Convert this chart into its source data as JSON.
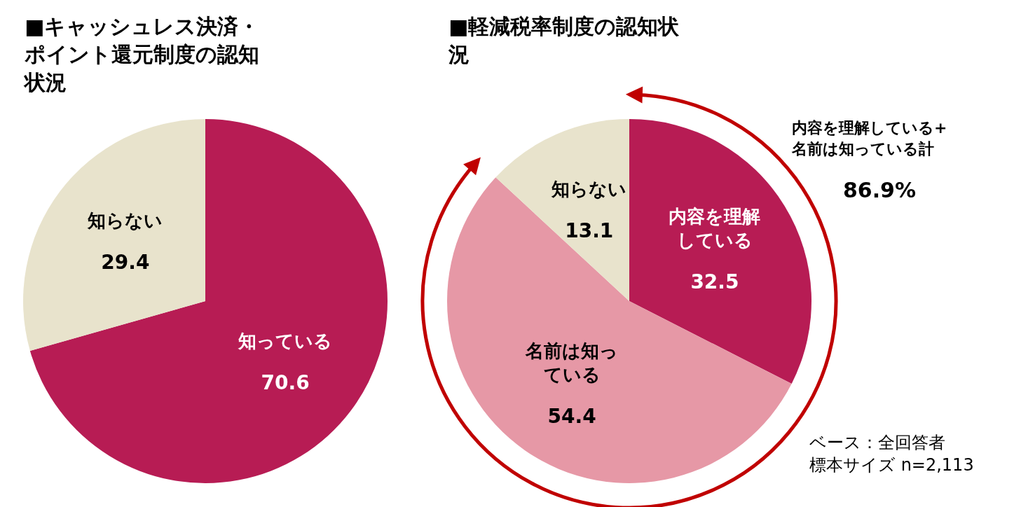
{
  "chart_data": [
    {
      "type": "pie",
      "title": "■キャッシュレス決済・ポイント還元制度の認知状況",
      "categories": [
        "知っている",
        "知らない"
      ],
      "values": [
        70.6,
        29.4
      ],
      "colors": [
        "#b71c54",
        "#e8e3cc"
      ],
      "data_labels": true
    },
    {
      "type": "pie",
      "title": "■軽減税率制度の認知状況",
      "categories": [
        "内容を理解している",
        "名前は知っている",
        "知らない"
      ],
      "values": [
        32.5,
        54.4,
        13.1
      ],
      "colors": [
        "#b71c54",
        "#e698a6",
        "#e8e3cc"
      ],
      "data_labels": true,
      "annotations": [
        "内容を理解している+名前は知っている計",
        "86.9%",
        "ベース：全回答者",
        "標本サイズ n=2,113"
      ]
    }
  ]
}
